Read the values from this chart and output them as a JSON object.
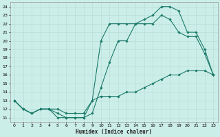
{
  "xlabel": "Humidex (Indice chaleur)",
  "background_color": "#cceee8",
  "grid_color": "#b8ddd8",
  "line_color": "#1a7a6a",
  "xlim": [
    -0.5,
    23.5
  ],
  "ylim": [
    10.5,
    24.5
  ],
  "xticks": [
    0,
    1,
    2,
    3,
    4,
    5,
    6,
    7,
    8,
    9,
    10,
    11,
    12,
    13,
    14,
    15,
    16,
    17,
    18,
    19,
    20,
    21,
    22,
    23
  ],
  "yticks": [
    11,
    12,
    13,
    14,
    15,
    16,
    17,
    18,
    19,
    20,
    21,
    22,
    23,
    24
  ],
  "curve1_x": [
    0,
    1,
    2,
    3,
    4,
    5,
    6,
    7,
    8,
    9,
    10,
    11,
    12,
    13,
    14,
    15,
    16,
    17,
    18,
    19,
    20,
    21,
    22,
    23
  ],
  "curve1_y": [
    13,
    12,
    11.5,
    12,
    12,
    11,
    11,
    11,
    11,
    11.5,
    14.5,
    17.5,
    20,
    20,
    22,
    22,
    22,
    23,
    22.5,
    21,
    20.5,
    20.5,
    18.5,
    16
  ],
  "curve2_x": [
    0,
    1,
    2,
    3,
    4,
    5,
    6,
    7,
    8,
    9,
    10,
    11,
    12,
    13,
    14,
    15,
    16,
    17,
    18,
    19,
    20,
    21,
    22,
    23
  ],
  "curve2_y": [
    13,
    12,
    11.5,
    12,
    12,
    11.5,
    11,
    11,
    11,
    13,
    20,
    22,
    22,
    22,
    22,
    22.5,
    23,
    24,
    24,
    23.5,
    21,
    21,
    19,
    16
  ],
  "curve3_x": [
    0,
    1,
    2,
    3,
    4,
    5,
    6,
    7,
    8,
    9,
    10,
    11,
    12,
    13,
    14,
    15,
    16,
    17,
    18,
    19,
    20,
    21,
    22,
    23
  ],
  "curve3_y": [
    13,
    12,
    11.5,
    12,
    12,
    12,
    11.5,
    11.5,
    11.5,
    13,
    13.5,
    13.5,
    13.5,
    14,
    14,
    14.5,
    15,
    15.5,
    16,
    16,
    16.5,
    16.5,
    16.5,
    16
  ]
}
